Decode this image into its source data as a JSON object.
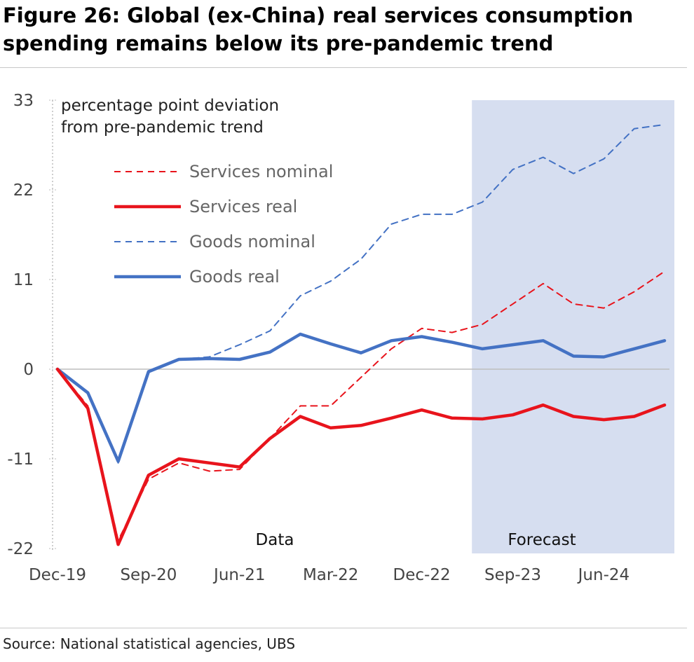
{
  "figure": {
    "title_line1": "Figure 26: Global (ex-China) real services consumption",
    "title_line2": "spending remains below its pre-pandemic trend",
    "source": "Source: National statistical agencies, UBS"
  },
  "chart_data": {
    "type": "line",
    "annotation": "percentage point deviation from pre-pandemic trend",
    "annotation_lines": [
      "percentage point deviation",
      "from pre-pandemic trend"
    ],
    "ylim": [
      -22,
      33
    ],
    "yticks": [
      33,
      22,
      11,
      0,
      -11,
      -22
    ],
    "x": [
      "Dec-19",
      "Mar-20",
      "Jun-20",
      "Sep-20",
      "Dec-20",
      "Mar-21",
      "Jun-21",
      "Sep-21",
      "Dec-21",
      "Mar-22",
      "Jun-22",
      "Sep-22",
      "Dec-22",
      "Mar-23",
      "Jun-23",
      "Sep-23",
      "Dec-23",
      "Mar-24",
      "Jun-24",
      "Sep-24",
      "Dec-24"
    ],
    "xtick_labels": [
      "Dec-19",
      "Sep-20",
      "Jun-21",
      "Mar-22",
      "Dec-22",
      "Sep-23",
      "Jun-24"
    ],
    "region_labels": {
      "data": "Data",
      "forecast": "Forecast"
    },
    "forecast_start": "Jun-23",
    "legend_placement": "top-left",
    "grid": false,
    "colors": {
      "red": "#e8141c",
      "blue": "#4472c4",
      "forecast_band": "#d6def0",
      "zero_line": "#bdbdbd"
    },
    "series": [
      {
        "name": "Services nominal",
        "color": "#e8141c",
        "style": "dashed",
        "values": [
          0,
          -4.5,
          -21,
          -13.5,
          -11.5,
          -12.5,
          -12.3,
          -8.5,
          -4.5,
          -4.5,
          -1,
          2.5,
          5,
          4.5,
          5.5,
          8,
          10.5,
          8,
          7.5,
          9.5,
          12
        ]
      },
      {
        "name": "Services real",
        "color": "#e8141c",
        "style": "solid",
        "values": [
          0,
          -4.8,
          -21.5,
          -13,
          -11,
          -11.5,
          -12,
          -8.5,
          -5.8,
          -7.2,
          -6.9,
          -6,
          -5,
          -6,
          -6.1,
          -5.6,
          -4.4,
          -5.8,
          -6.2,
          -5.8,
          -4.4
        ]
      },
      {
        "name": "Goods nominal",
        "color": "#4472c4",
        "style": "dashed",
        "values": [
          0,
          -3,
          -11.5,
          -0.2,
          1.2,
          1.5,
          3,
          4.7,
          9,
          10.8,
          13.5,
          17.8,
          19,
          19,
          20.5,
          24.5,
          26,
          24,
          25.8,
          29.5,
          30
        ]
      },
      {
        "name": "Goods real",
        "color": "#4472c4",
        "style": "solid",
        "values": [
          0,
          -2.9,
          -11.3,
          -0.3,
          1.2,
          1.3,
          1.2,
          2.1,
          4.3,
          3.1,
          2,
          3.5,
          4,
          3.3,
          2.5,
          3,
          3.5,
          1.6,
          1.5,
          2.5,
          3.5
        ]
      }
    ]
  }
}
